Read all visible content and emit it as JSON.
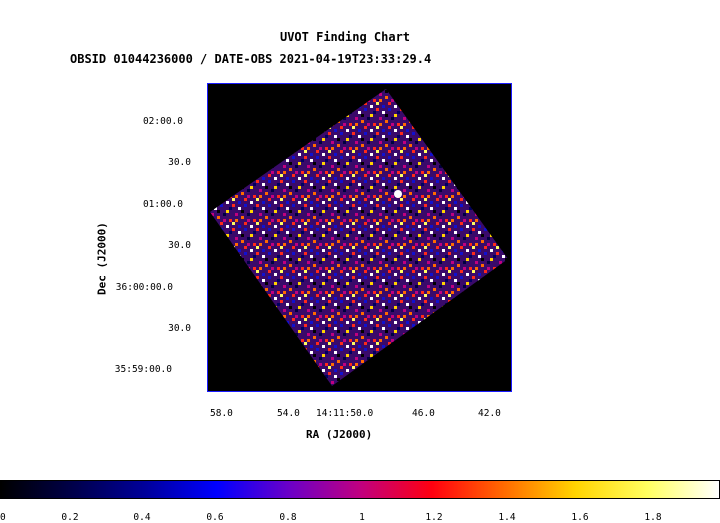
{
  "title": "UVOT Finding Chart",
  "subtitle": "OBSID 01044236000 / DATE-OBS 2021-04-19T23:33:29.4",
  "axes": {
    "x_label": "RA (J2000)",
    "y_label": "Dec (J2000)",
    "x_ticks": [
      "58.0",
      "54.0",
      "14:11:50.0",
      "46.0",
      "42.0"
    ],
    "y_ticks": [
      "02:00.0",
      "30.0",
      "01:00.0",
      "30.0",
      "36:00:00.0",
      "30.0",
      "35:59:00.0"
    ]
  },
  "colorbar": {
    "ticks": [
      "0",
      "0.2",
      "0.4",
      "0.6",
      "0.8",
      "1",
      "1.2",
      "1.4",
      "1.6",
      "1.8"
    ],
    "range": [
      0,
      2
    ]
  },
  "image": {
    "background_color": "#000000",
    "frame_color": "#1a1aff",
    "footprint_shape": "rotated-square"
  }
}
